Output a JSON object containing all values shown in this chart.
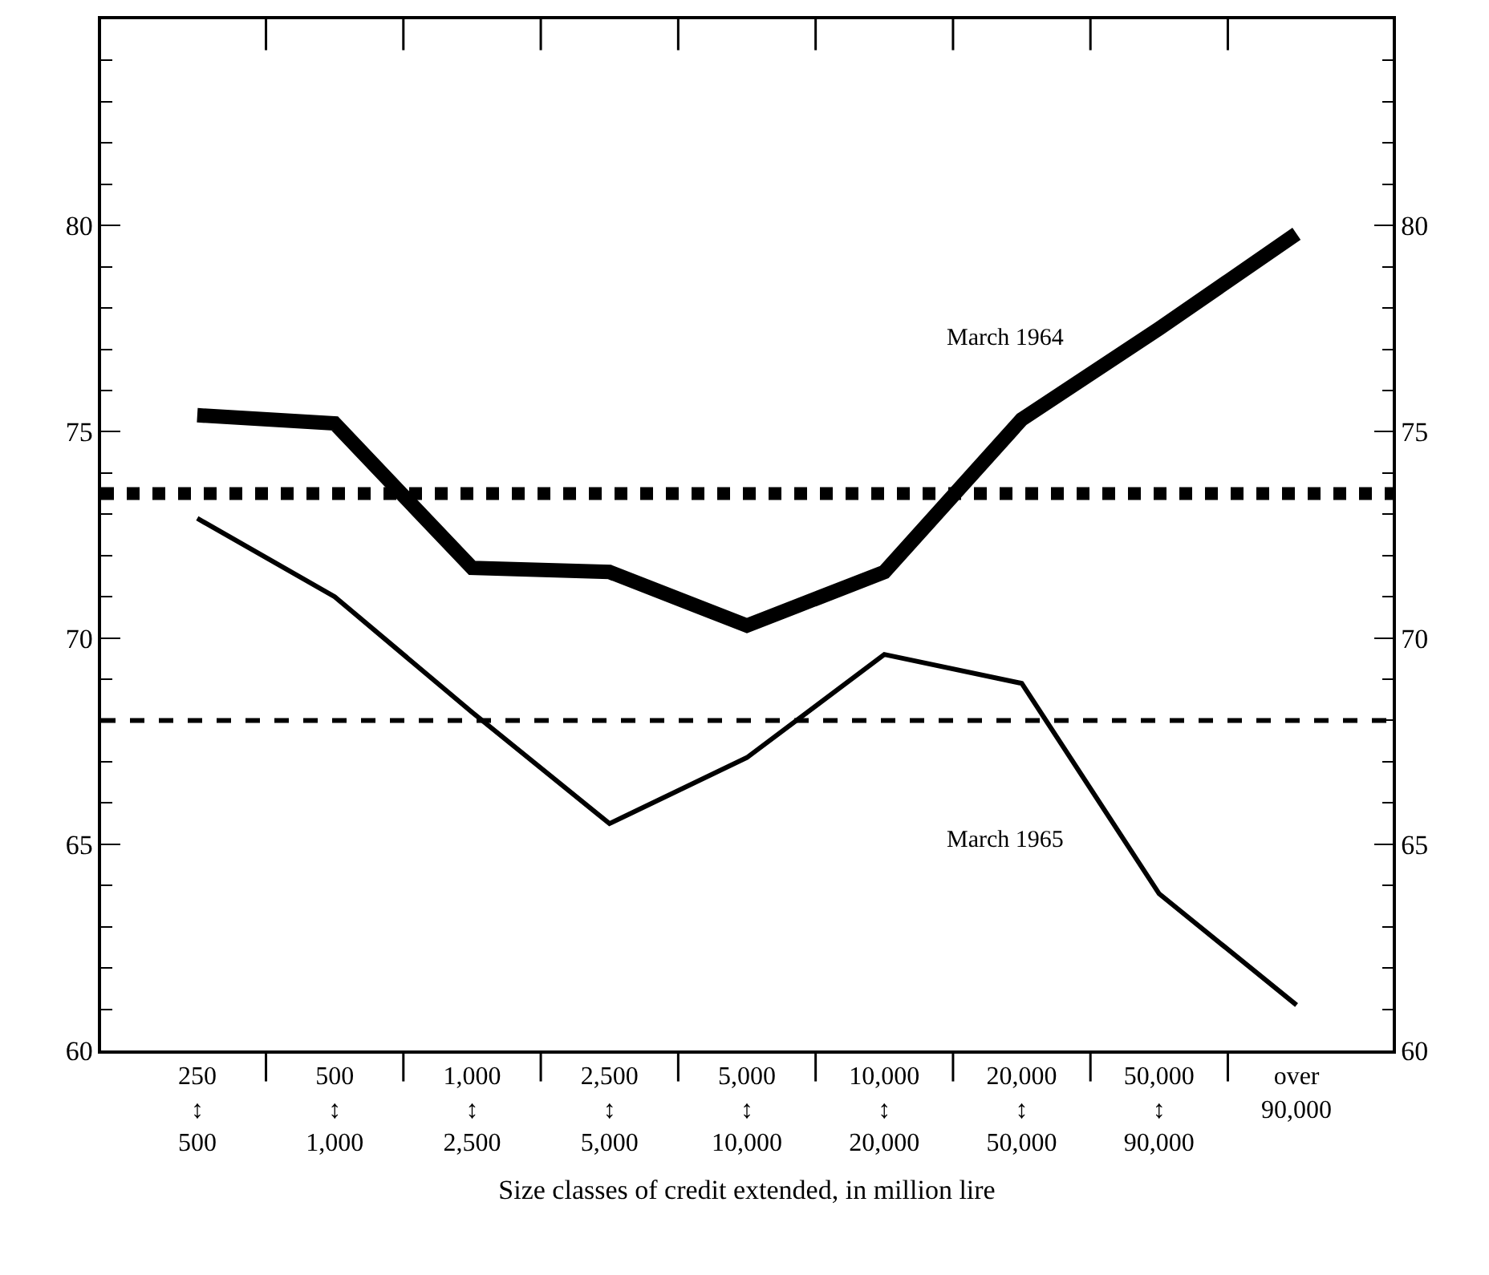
{
  "chart_data": {
    "type": "line",
    "xlabel": "Size classes of credit extended, in million lire",
    "categories": [
      "250\n↕\n500",
      "500\n↕\n1,000",
      "1,000\n↕\n2,500",
      "2,500\n↕\n5,000",
      "5,000\n↕\n10,000",
      "10,000\n↕\n20,000",
      "20,000\n↕\n50,000",
      "50,000\n↕\n90,000",
      "over\n90,000"
    ],
    "series": [
      {
        "name": "March 1964",
        "color": "#000000",
        "line_style": "solid",
        "values": [
          75.4,
          75.2,
          71.7,
          71.6,
          70.3,
          71.6,
          75.3,
          77.5,
          79.8
        ]
      },
      {
        "name": "March 1965",
        "color": "#000000",
        "line_style": "solid",
        "values": [
          72.9,
          71.0,
          68.2,
          65.5,
          67.1,
          69.6,
          68.9,
          63.8,
          61.1
        ]
      }
    ],
    "ref_lines": [
      {
        "axis": "y",
        "value": 73.5,
        "color": "#000000",
        "line_style": "dotted"
      },
      {
        "axis": "y",
        "value": 68.0,
        "color": "#000000",
        "line_style": "dashed"
      }
    ],
    "ylim": [
      60,
      85
    ],
    "yticks": [
      60,
      65,
      70,
      75,
      80
    ],
    "y2lim": [
      60,
      85
    ],
    "y2ticks": [
      60,
      65,
      70,
      75,
      80
    ],
    "grid": false,
    "legend": false,
    "marker": "none"
  }
}
